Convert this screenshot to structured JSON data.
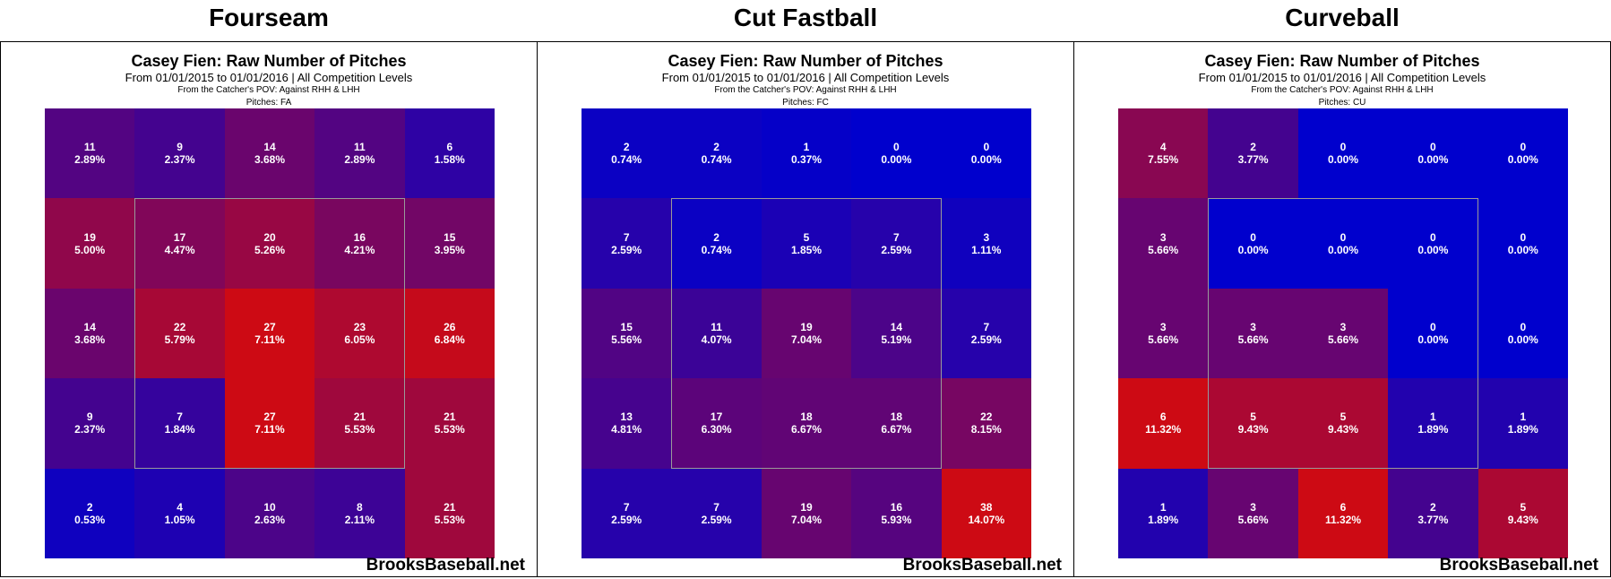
{
  "panels": [
    {
      "header": "Fourseam",
      "title": "Casey Fien: Raw Number of Pitches",
      "subtitle": "From 01/01/2015 to 01/01/2016 | All Competition Levels",
      "pov": "From the Catcher's POV:   Against RHH & LHH",
      "pitches": "Pitches:  FA",
      "watermark": "BrooksBaseball.net"
    },
    {
      "header": "Cut Fastball",
      "title": "Casey Fien: Raw Number of Pitches",
      "subtitle": "From 01/01/2015 to 01/01/2016 | All Competition Levels",
      "pov": "From the Catcher's POV:   Against RHH & LHH",
      "pitches": "Pitches:  FC",
      "watermark": "BrooksBaseball.net"
    },
    {
      "header": "Curveball",
      "title": "Casey Fien: Raw Number of Pitches",
      "subtitle": "From 01/01/2015 to 01/01/2016 | All Competition Levels",
      "pov": "From the Catcher's POV:   Against RHH & LHH",
      "pitches": "Pitches:  CU",
      "watermark": "BrooksBaseball.net"
    }
  ],
  "chart_data": [
    {
      "type": "heatmap",
      "title": "Casey Fien: Raw Number of Pitches",
      "pitch_type": "Fourseam",
      "counts": [
        [
          11,
          9,
          14,
          11,
          6
        ],
        [
          19,
          17,
          20,
          16,
          15
        ],
        [
          14,
          22,
          27,
          23,
          26
        ],
        [
          9,
          7,
          27,
          21,
          21
        ],
        [
          2,
          4,
          10,
          8,
          21
        ]
      ],
      "percents": [
        [
          "2.89%",
          "2.37%",
          "3.68%",
          "2.89%",
          "1.58%"
        ],
        [
          "5.00%",
          "4.47%",
          "5.26%",
          "4.21%",
          "3.95%"
        ],
        [
          "3.68%",
          "5.79%",
          "7.11%",
          "6.05%",
          "6.84%"
        ],
        [
          "2.37%",
          "1.84%",
          "7.11%",
          "5.53%",
          "5.53%"
        ],
        [
          "0.53%",
          "1.05%",
          "2.63%",
          "2.11%",
          "5.53%"
        ]
      ],
      "pcts": [
        [
          2.89,
          2.37,
          3.68,
          2.89,
          1.58
        ],
        [
          5.0,
          4.47,
          5.26,
          4.21,
          3.95
        ],
        [
          3.68,
          5.79,
          7.11,
          6.05,
          6.84
        ],
        [
          2.37,
          1.84,
          7.11,
          5.53,
          5.53
        ],
        [
          0.53,
          1.05,
          2.63,
          2.11,
          5.53
        ]
      ],
      "color_max": 7.11
    },
    {
      "type": "heatmap",
      "title": "Casey Fien: Raw Number of Pitches",
      "pitch_type": "Cut Fastball",
      "counts": [
        [
          2,
          2,
          1,
          0,
          0
        ],
        [
          7,
          2,
          5,
          7,
          3
        ],
        [
          15,
          11,
          19,
          14,
          7
        ],
        [
          13,
          17,
          18,
          18,
          22
        ],
        [
          7,
          7,
          19,
          16,
          38
        ]
      ],
      "percents": [
        [
          "0.74%",
          "0.74%",
          "0.37%",
          "0.00%",
          "0.00%"
        ],
        [
          "2.59%",
          "0.74%",
          "1.85%",
          "2.59%",
          "1.11%"
        ],
        [
          "5.56%",
          "4.07%",
          "7.04%",
          "5.19%",
          "2.59%"
        ],
        [
          "4.81%",
          "6.30%",
          "6.67%",
          "6.67%",
          "8.15%"
        ],
        [
          "2.59%",
          "2.59%",
          "7.04%",
          "5.93%",
          "14.07%"
        ]
      ],
      "pcts": [
        [
          0.74,
          0.74,
          0.37,
          0,
          0
        ],
        [
          2.59,
          0.74,
          1.85,
          2.59,
          1.11
        ],
        [
          5.56,
          4.07,
          7.04,
          5.19,
          2.59
        ],
        [
          4.81,
          6.3,
          6.67,
          6.67,
          8.15
        ],
        [
          2.59,
          2.59,
          7.04,
          5.93,
          14.07
        ]
      ],
      "color_max": 14.07
    },
    {
      "type": "heatmap",
      "title": "Casey Fien: Raw Number of Pitches",
      "pitch_type": "Curveball",
      "counts": [
        [
          4,
          2,
          0,
          0,
          0
        ],
        [
          3,
          0,
          0,
          0,
          0
        ],
        [
          3,
          3,
          3,
          0,
          0
        ],
        [
          6,
          5,
          5,
          1,
          1
        ],
        [
          1,
          3,
          6,
          2,
          5
        ]
      ],
      "percents": [
        [
          "7.55%",
          "3.77%",
          "0.00%",
          "0.00%",
          "0.00%"
        ],
        [
          "5.66%",
          "0.00%",
          "0.00%",
          "0.00%",
          "0.00%"
        ],
        [
          "5.66%",
          "5.66%",
          "5.66%",
          "0.00%",
          "0.00%"
        ],
        [
          "11.32%",
          "9.43%",
          "9.43%",
          "1.89%",
          "1.89%"
        ],
        [
          "1.89%",
          "5.66%",
          "11.32%",
          "3.77%",
          "9.43%"
        ]
      ],
      "pcts": [
        [
          7.55,
          3.77,
          0,
          0,
          0
        ],
        [
          5.66,
          0,
          0,
          0,
          0
        ],
        [
          5.66,
          5.66,
          5.66,
          0,
          0
        ],
        [
          11.32,
          9.43,
          9.43,
          1.89,
          1.89
        ],
        [
          1.89,
          5.66,
          11.32,
          3.77,
          9.43
        ]
      ],
      "color_max": 11.32
    }
  ]
}
